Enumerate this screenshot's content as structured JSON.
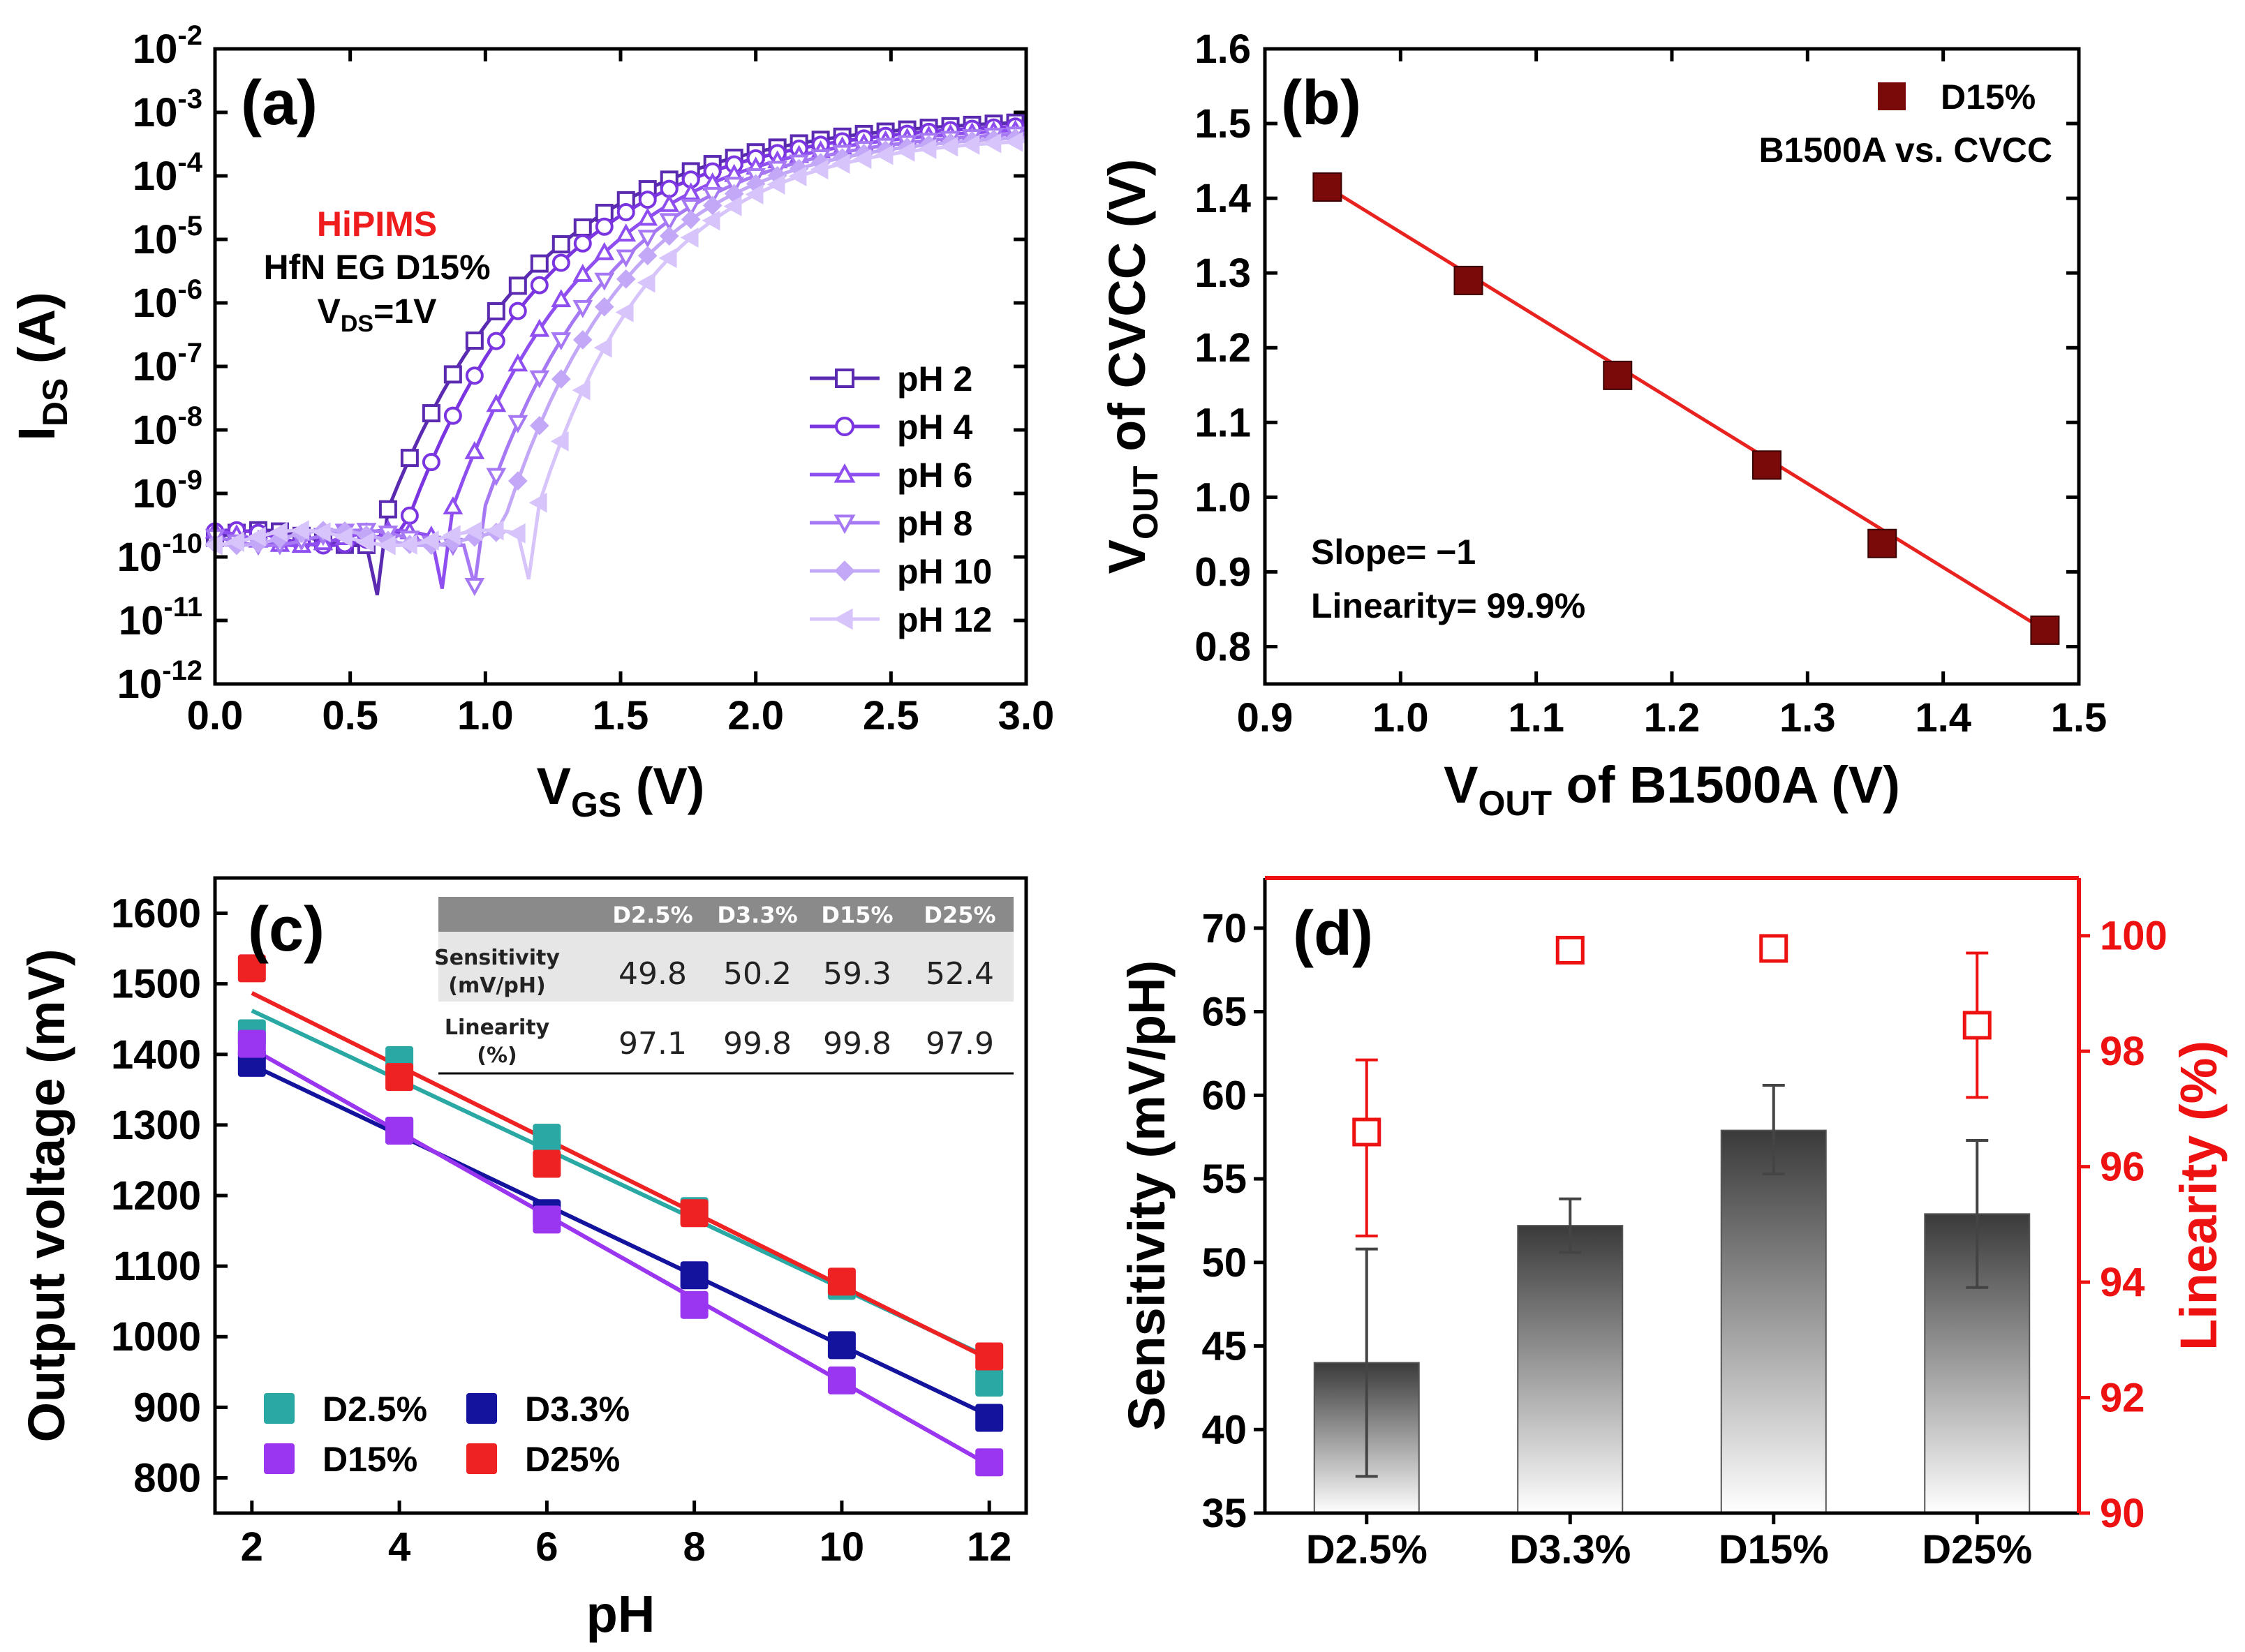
{
  "chart_data": [
    {
      "panel": "(a)",
      "type": "line",
      "yscale": "log",
      "xlabel": "V",
      "xlabel_sub": "GS",
      "xlabel_unit": " (V)",
      "ylabel": "I",
      "ylabel_sub": "DS",
      "ylabel_unit": " (A)",
      "xlim": [
        0,
        3.0
      ],
      "ylim_exp": [
        -12,
        -2
      ],
      "xticks": [
        "0.0",
        "0.5",
        "1.0",
        "1.5",
        "2.0",
        "2.5",
        "3.0"
      ],
      "yticks": [
        "-12",
        "-11",
        "-10",
        "-9",
        "-8",
        "-7",
        "-6",
        "-5",
        "-4",
        "-3",
        "-2"
      ],
      "ytick_base": "10",
      "annotations": {
        "method": "HiPIMS",
        "device": "HfN EG D15%",
        "vds_main": "V",
        "vds_sub": "DS",
        "vds_val": "=1V"
      },
      "series": [
        {
          "name": "pH 2",
          "vt": 0.6,
          "color": "#5a2bb0",
          "marker": "square"
        },
        {
          "name": "pH 4",
          "vt": 0.69,
          "color": "#7a35e0",
          "marker": "circle"
        },
        {
          "name": "pH 6",
          "vt": 0.84,
          "color": "#8f4ef0",
          "marker": "triangle-up"
        },
        {
          "name": "pH 8",
          "vt": 0.96,
          "color": "#a678f3",
          "marker": "triangle-down"
        },
        {
          "name": "pH 10",
          "vt": 1.05,
          "color": "#c3a8f7",
          "marker": "diamond"
        },
        {
          "name": "pH 12",
          "vt": 1.16,
          "color": "#d6c4fa",
          "marker": "triangle-left"
        }
      ],
      "off_current": "2e-10",
      "on_current_at_3V": "7e-4"
    },
    {
      "panel": "(b)",
      "type": "scatter",
      "xlabel": "V",
      "xlabel_sub": "OUT",
      "xlabel_rest": " of B1500A (V)",
      "ylabel": "V",
      "ylabel_sub": "OUT",
      "ylabel_rest": " of CVCC (V)",
      "xlim": [
        0.9,
        1.5
      ],
      "ylim": [
        0.75,
        1.6
      ],
      "xticks": [
        "0.9",
        "1.0",
        "1.1",
        "1.2",
        "1.3",
        "1.4",
        "1.5"
      ],
      "yticks": [
        "0.8",
        "0.9",
        "1.0",
        "1.1",
        "1.2",
        "1.3",
        "1.4",
        "1.5",
        "1.6"
      ],
      "legend": "D15%",
      "subtitle": "B1500A vs. CVCC",
      "annotations": [
        "Slope= −1",
        "Linearity= 99.9%"
      ],
      "x": [
        0.946,
        1.05,
        1.16,
        1.27,
        1.355,
        1.475
      ],
      "y": [
        1.415,
        1.29,
        1.163,
        1.043,
        0.938,
        0.822
      ],
      "fit": {
        "x": [
          0.946,
          1.475
        ],
        "y": [
          1.415,
          0.822
        ]
      },
      "marker_color": "#7a0a0a",
      "fit_color": "#e8231f"
    },
    {
      "panel": "(c)",
      "type": "scatter",
      "xlabel": "pH",
      "ylabel": "Output voltage (mV)",
      "xlim": [
        1.5,
        12.5
      ],
      "ylim": [
        750,
        1650
      ],
      "xticks": [
        "2",
        "4",
        "6",
        "8",
        "10",
        "12"
      ],
      "yticks": [
        "800",
        "900",
        "1000",
        "1100",
        "1200",
        "1300",
        "1400",
        "1500",
        "1600"
      ],
      "x": [
        2,
        4,
        6,
        8,
        10,
        12
      ],
      "series": [
        {
          "name": "D2.5%",
          "color": "#2aa8a4",
          "values": [
            1430,
            1392,
            1282,
            1178,
            1072,
            935
          ],
          "fit": [
            1462,
            970
          ]
        },
        {
          "name": "D3.3%",
          "color": "#13139e",
          "values": [
            1388,
            1292,
            1175,
            1087,
            988,
            885
          ],
          "fit": [
            1385,
            888
          ]
        },
        {
          "name": "D15%",
          "color": "#9a36f0",
          "values": [
            1415,
            1292,
            1166,
            1045,
            938,
            822
          ],
          "fit": [
            1408,
            818
          ]
        },
        {
          "name": "D25%",
          "color": "#ee2222",
          "values": [
            1522,
            1368,
            1245,
            1175,
            1078,
            972
          ],
          "fit": [
            1487,
            968
          ]
        }
      ],
      "table": {
        "columns": [
          "",
          "D2.5%",
          "D3.3%",
          "D15%",
          "D25%"
        ],
        "rows": [
          {
            "label1": "Sensitivity",
            "label2": "(mV/pH)",
            "values": [
              "49.8",
              "50.2",
              "59.3",
              "52.4"
            ]
          },
          {
            "label1": "Linearity",
            "label2": "(%)",
            "values": [
              "97.1",
              "99.8",
              "99.8",
              "97.9"
            ]
          }
        ]
      }
    },
    {
      "panel": "(d)",
      "type": "bar",
      "categories": [
        "D2.5%",
        "D3.3%",
        "D15%",
        "D25%"
      ],
      "ylabel": "Sensitivity (mV/pH)",
      "y2label": "Linearity (%)",
      "ylim": [
        35,
        73
      ],
      "y2lim": [
        90,
        101
      ],
      "yticks": [
        "35",
        "40",
        "45",
        "50",
        "55",
        "60",
        "65",
        "70"
      ],
      "y2ticks": [
        "90",
        "92",
        "94",
        "96",
        "98",
        "100"
      ],
      "bars": {
        "values": [
          44.0,
          52.2,
          57.9,
          52.9
        ],
        "err_low": [
          37.2,
          50.6,
          55.3,
          48.5
        ],
        "err_high": [
          50.8,
          53.8,
          60.6,
          57.3
        ]
      },
      "linearity": {
        "values": [
          96.6,
          99.75,
          99.78,
          98.45
        ],
        "err_low": [
          94.8,
          99.6,
          99.6,
          97.2
        ],
        "err_high": [
          97.85,
          99.9,
          99.95,
          99.7
        ]
      },
      "right_axis_color": "#ee1111"
    }
  ]
}
